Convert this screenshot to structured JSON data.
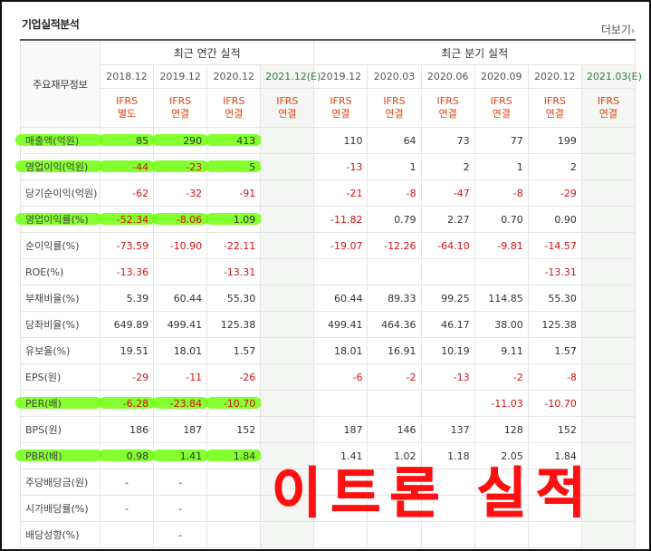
{
  "header": {
    "title": "기업실적분석",
    "more_label": "더보기"
  },
  "table": {
    "label_header": "주요재무정보",
    "groups": {
      "annual": "최근 연간 실적",
      "quarterly": "최근 분기 실적"
    },
    "periods": [
      "2018.12",
      "2019.12",
      "2020.12",
      "2021.12(E)",
      "2019.12",
      "2020.03",
      "2020.06",
      "2020.09",
      "2020.12",
      "2021.03(E)"
    ],
    "standards": [
      [
        "IFRS",
        "별도"
      ],
      [
        "IFRS",
        "연결"
      ],
      [
        "IFRS",
        "연결"
      ],
      [
        "IFRS",
        "연결"
      ],
      [
        "IFRS",
        "연결"
      ],
      [
        "IFRS",
        "연결"
      ],
      [
        "IFRS",
        "연결"
      ],
      [
        "IFRS",
        "연결"
      ],
      [
        "IFRS",
        "연결"
      ],
      [
        "IFRS",
        "연결"
      ]
    ],
    "rows": [
      {
        "label": "매출액(억원)",
        "highlight": true,
        "values": [
          "85",
          "290",
          "413",
          "",
          "110",
          "64",
          "73",
          "77",
          "199",
          ""
        ]
      },
      {
        "label": "영업이익(억원)",
        "highlight": true,
        "values": [
          "-44",
          "-23",
          "5",
          "",
          "-13",
          "1",
          "2",
          "1",
          "2",
          ""
        ]
      },
      {
        "label": "당기순이익(억원)",
        "highlight": false,
        "values": [
          "-62",
          "-32",
          "-91",
          "",
          "-21",
          "-8",
          "-47",
          "-8",
          "-29",
          ""
        ]
      },
      {
        "label": "영업이익률(%)",
        "highlight": true,
        "values": [
          "-52.34",
          "-8.06",
          "1.09",
          "",
          "-11.82",
          "0.79",
          "2.27",
          "0.70",
          "0.90",
          ""
        ]
      },
      {
        "label": "순이익률(%)",
        "highlight": false,
        "values": [
          "-73.59",
          "-10.90",
          "-22.11",
          "",
          "-19.07",
          "-12.26",
          "-64.10",
          "-9.81",
          "-14.57",
          ""
        ]
      },
      {
        "label": "ROE(%)",
        "highlight": false,
        "values": [
          "-13.36",
          "",
          "-13.31",
          "",
          "",
          "",
          "",
          "",
          "-13.31",
          ""
        ]
      },
      {
        "label": "부채비율(%)",
        "highlight": false,
        "values": [
          "5.39",
          "60.44",
          "55.30",
          "",
          "60.44",
          "89.33",
          "99.25",
          "114.85",
          "55.30",
          ""
        ]
      },
      {
        "label": "당좌비율(%)",
        "highlight": false,
        "values": [
          "649.89",
          "499.41",
          "125.38",
          "",
          "499.41",
          "464.36",
          "46.17",
          "38.00",
          "125.38",
          ""
        ]
      },
      {
        "label": "유보율(%)",
        "highlight": false,
        "values": [
          "19.51",
          "18.01",
          "1.57",
          "",
          "18.01",
          "16.91",
          "10.19",
          "9.11",
          "1.57",
          ""
        ]
      },
      {
        "label": "EPS(원)",
        "highlight": false,
        "values": [
          "-29",
          "-11",
          "-26",
          "",
          "-6",
          "-2",
          "-13",
          "-2",
          "-8",
          ""
        ]
      },
      {
        "label": "PER(배)",
        "highlight": true,
        "values": [
          "-6.28",
          "-23.84",
          "-10.70",
          "",
          "",
          "",
          "",
          "-11.03",
          "-10.70",
          ""
        ]
      },
      {
        "label": "BPS(원)",
        "highlight": false,
        "values": [
          "186",
          "187",
          "152",
          "",
          "187",
          "146",
          "137",
          "128",
          "152",
          ""
        ]
      },
      {
        "label": "PBR(배)",
        "highlight": true,
        "values": [
          "0.98",
          "1.41",
          "1.84",
          "",
          "1.41",
          "1.02",
          "1.18",
          "2.05",
          "1.84",
          ""
        ]
      },
      {
        "label": "주당배당금(원)",
        "highlight": false,
        "values": [
          "-",
          "-",
          "",
          "",
          "",
          "",
          "",
          "",
          "",
          ""
        ]
      },
      {
        "label": "시가배당률(%)",
        "highlight": false,
        "values": [
          "-",
          "-",
          "",
          "",
          "",
          "",
          "",
          "",
          "",
          ""
        ]
      },
      {
        "label": "배당성향(%)",
        "highlight": false,
        "values": [
          "",
          "-",
          "",
          "",
          "",
          "",
          "",
          "",
          "",
          ""
        ]
      }
    ]
  },
  "overlay_text": "이트론 실적",
  "colors": {
    "highlight": "#6eff0a",
    "negative": "#d31313",
    "ifrs": "#e1440f",
    "overlay": "#ff1010"
  }
}
